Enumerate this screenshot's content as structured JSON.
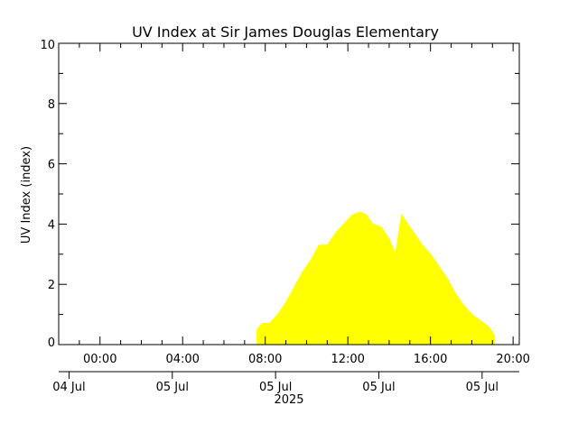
{
  "chart_data": {
    "type": "area",
    "title": "UV Index at Sir James Douglas Elementary",
    "ylabel": "UV Index (index)",
    "xlabel": "",
    "ylim": [
      0,
      10
    ],
    "y_ticks": [
      "0",
      "2",
      "4",
      "6",
      "8",
      "10"
    ],
    "x_range_hours": [
      -2.0,
      20.3
    ],
    "x_time_ticks": [
      {
        "hour": 0,
        "label": "00:00"
      },
      {
        "hour": 4,
        "label": "04:00"
      },
      {
        "hour": 8,
        "label": "08:00"
      },
      {
        "hour": 12,
        "label": "12:00"
      },
      {
        "hour": 16,
        "label": "16:00"
      },
      {
        "hour": 20,
        "label": "20:00"
      }
    ],
    "x_date_ticks": [
      {
        "hour": -1.5,
        "label": "04 Jul"
      },
      {
        "hour": 3.5,
        "label": "05 Jul"
      },
      {
        "hour": 8.5,
        "label": "05 Jul"
      },
      {
        "hour": 13.5,
        "label": "05 Jul"
      },
      {
        "hour": 18.5,
        "label": "05 Jul"
      }
    ],
    "year_label": "2025",
    "grid": false,
    "color": "#ffff00",
    "series": [
      {
        "x": [
          7.6,
          7.85,
          8.2,
          8.6,
          9.0,
          9.4,
          9.8,
          10.2,
          10.6,
          11.0,
          11.4,
          11.8,
          12.2,
          12.6,
          12.9,
          13.2,
          13.6,
          14.0,
          14.3,
          14.6,
          14.9,
          15.2,
          15.6,
          16.0,
          16.4,
          16.8,
          17.2,
          17.6,
          18.0,
          18.4,
          18.8,
          19.1
        ],
        "y": [
          0.5,
          0.7,
          0.7,
          1.0,
          1.4,
          1.9,
          2.4,
          2.8,
          3.3,
          3.3,
          3.7,
          4.0,
          4.3,
          4.4,
          4.3,
          4.0,
          3.9,
          3.5,
          3.0,
          4.3,
          4.0,
          3.7,
          3.3,
          3.0,
          2.6,
          2.2,
          1.7,
          1.3,
          1.0,
          0.8,
          0.6,
          0.3
        ]
      }
    ]
  }
}
